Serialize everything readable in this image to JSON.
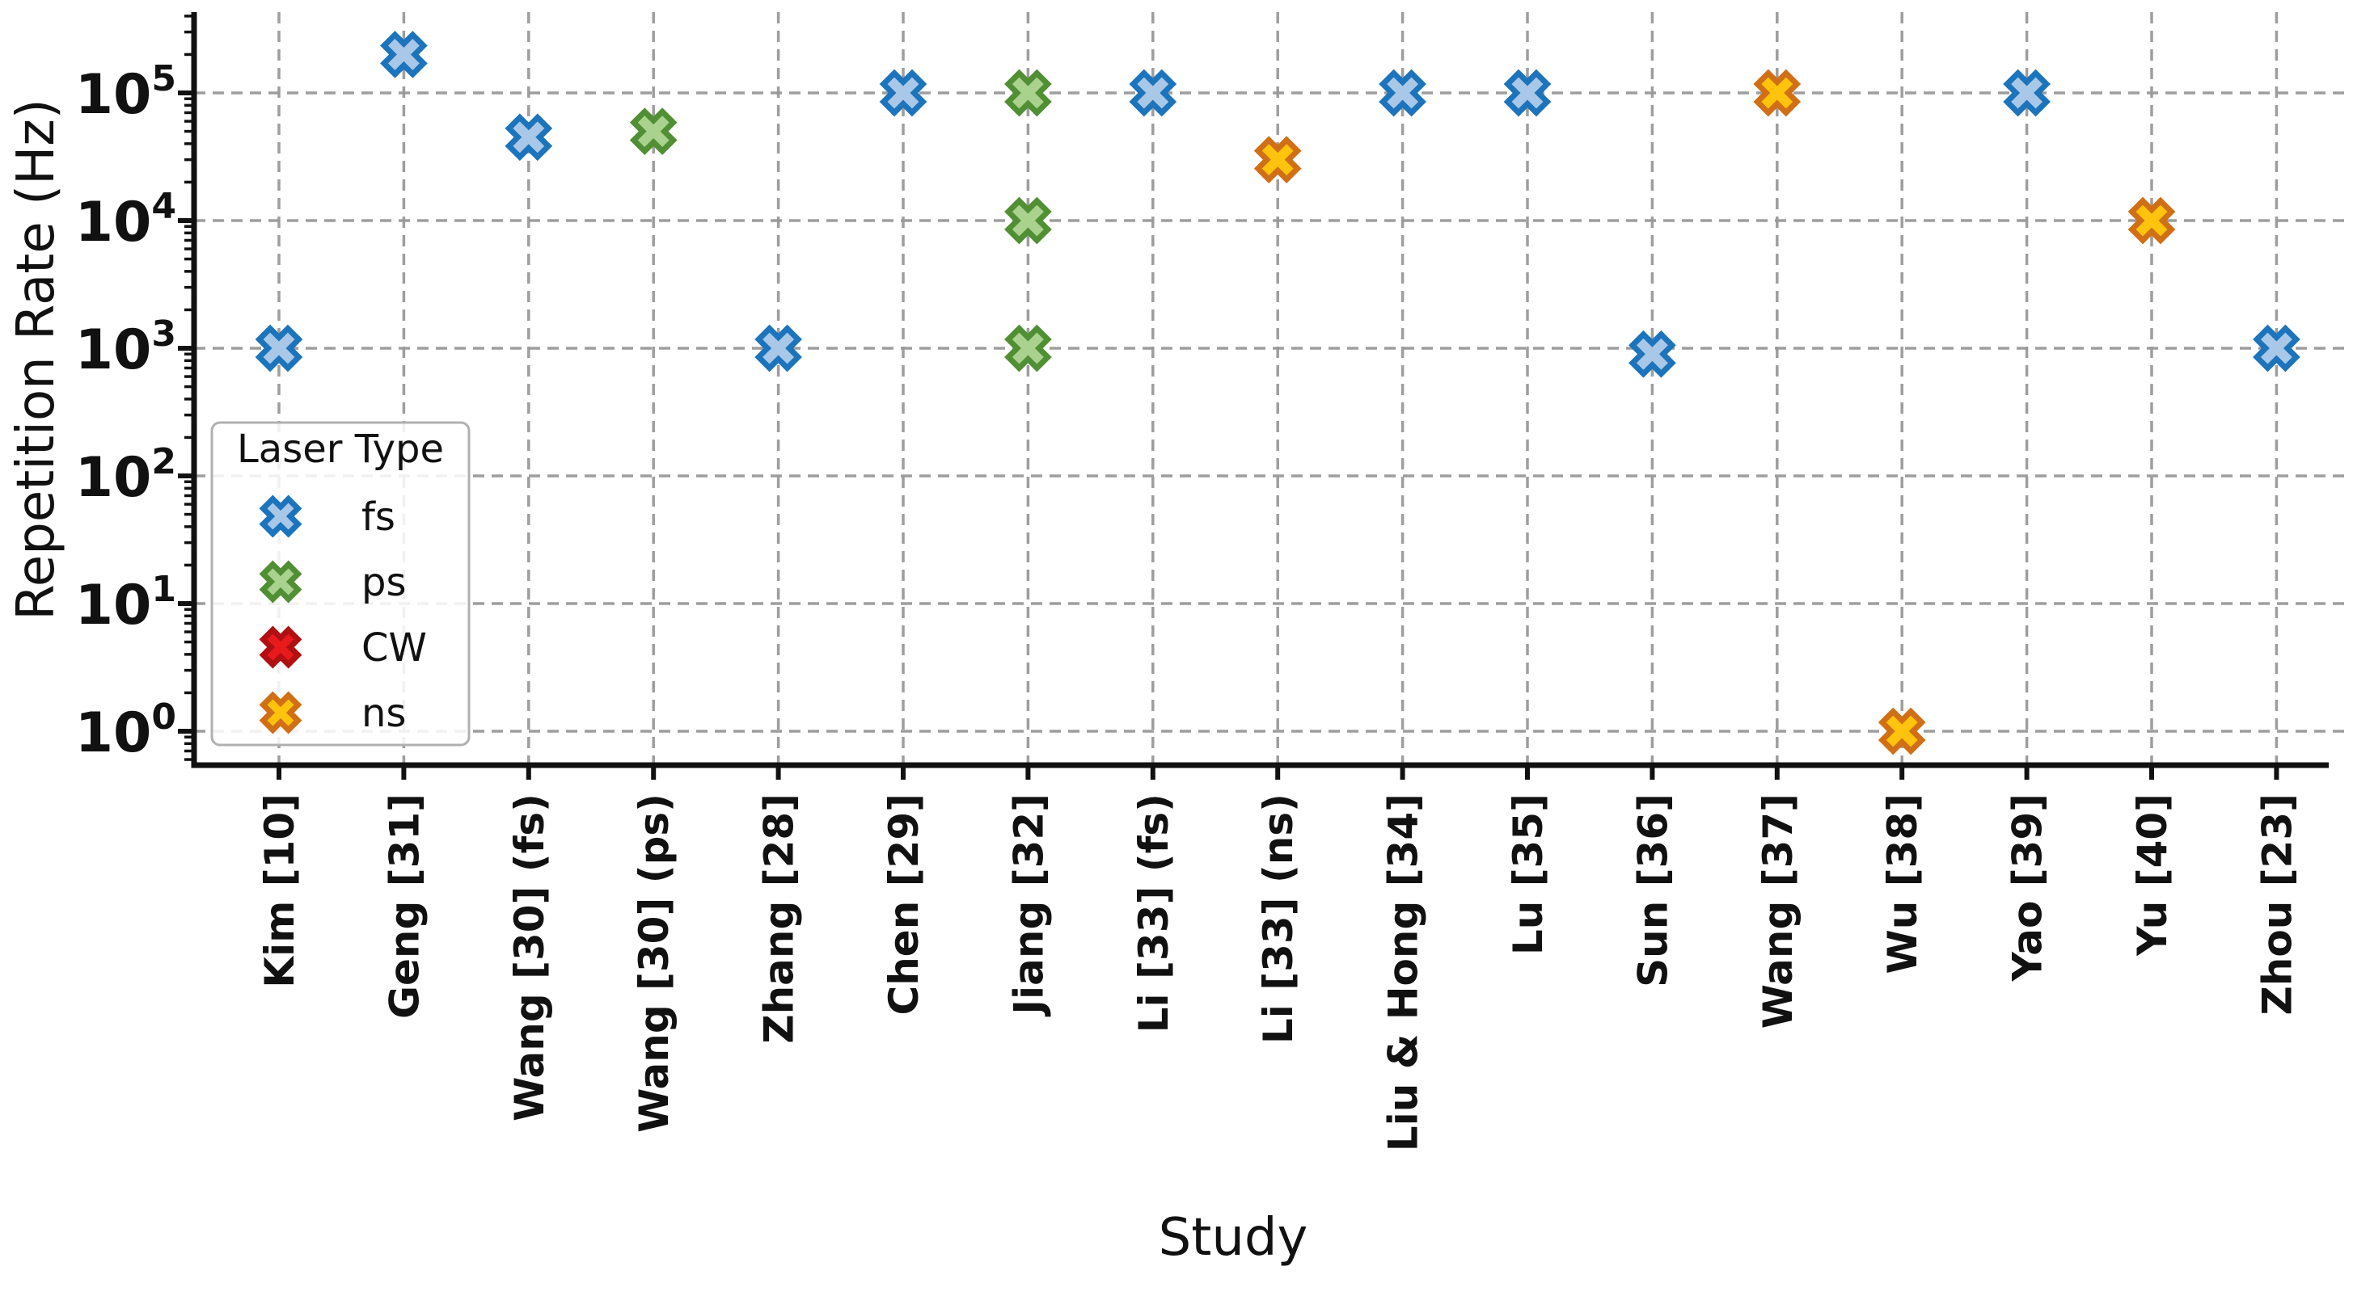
{
  "chart_data": {
    "type": "scatter",
    "title": "",
    "xlabel": "Study",
    "ylabel": "Repetition Rate (Hz)",
    "y_scale": "log",
    "y_tick_base": "10",
    "y_tick_exponents": [
      0,
      1,
      2,
      3,
      4,
      5
    ],
    "ylim_hz": [
      0.3,
      400000
    ],
    "grid": {
      "show": true,
      "color": "#999999",
      "style": "dashed"
    },
    "spine_color": "#111111",
    "categories": [
      "Kim [10]",
      "Geng [31]",
      "Wang [30] (fs)",
      "Wang [30] (ps)",
      "Zhang [28]",
      "Chen [29]",
      "Jiang [32]",
      "Li [33] (fs)",
      "Li [33] (ns)",
      "Liu & Hong [34]",
      "Lu [35]",
      "Sun [36]",
      "Wang [37]",
      "Wu [38]",
      "Yao [39]",
      "Yu [40]",
      "Zhou [23]"
    ],
    "legend": {
      "title": "Laser Type",
      "position": "lower left"
    },
    "series": [
      {
        "name": "fs",
        "fill": "#a9c8e7",
        "edge": "#1b74bc",
        "points": [
          {
            "study": "Kim [10]",
            "hz": 1000
          },
          {
            "study": "Geng [31]",
            "hz": 200000
          },
          {
            "study": "Wang [30] (fs)",
            "hz": 45000
          },
          {
            "study": "Zhang [28]",
            "hz": 1000
          },
          {
            "study": "Chen [29]",
            "hz": 100000
          },
          {
            "study": "Li [33] (fs)",
            "hz": 100000
          },
          {
            "study": "Liu & Hong [34]",
            "hz": 100000
          },
          {
            "study": "Lu [35]",
            "hz": 100000
          },
          {
            "study": "Sun [36]",
            "hz": 900
          },
          {
            "study": "Yao [39]",
            "hz": 100000
          },
          {
            "study": "Zhou [23]",
            "hz": 1000
          }
        ]
      },
      {
        "name": "ps",
        "fill": "#aad28f",
        "edge": "#508f33",
        "points": [
          {
            "study": "Wang [30] (ps)",
            "hz": 50000
          },
          {
            "study": "Jiang [32]",
            "hz": 100000
          },
          {
            "study": "Jiang [32]",
            "hz": 10000
          },
          {
            "study": "Jiang [32]",
            "hz": 1000
          }
        ]
      },
      {
        "name": "CW",
        "fill": "#e91a1c",
        "edge": "#b01012",
        "points": []
      },
      {
        "name": "ns",
        "fill": "#fdc30d",
        "edge": "#d06f15",
        "points": [
          {
            "study": "Li [33] (ns)",
            "hz": 30000
          },
          {
            "study": "Wang [37]",
            "hz": 100000
          },
          {
            "study": "Wu [38]",
            "hz": 1
          },
          {
            "study": "Yu [40]",
            "hz": 10000
          }
        ]
      }
    ]
  }
}
